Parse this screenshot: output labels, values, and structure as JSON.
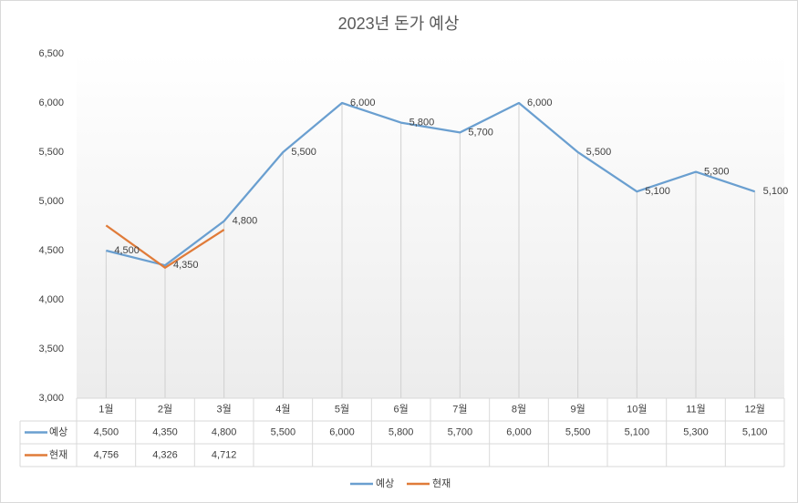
{
  "chart_data": {
    "type": "line",
    "title": "2023년 돈가 예상",
    "categories": [
      "1월",
      "2월",
      "3월",
      "4월",
      "5월",
      "6월",
      "7월",
      "8월",
      "9월",
      "10월",
      "11월",
      "12월"
    ],
    "series": [
      {
        "name": "예상",
        "color": "#6a9fd0",
        "values": [
          4500,
          4350,
          4800,
          5500,
          6000,
          5800,
          5700,
          6000,
          5500,
          5100,
          5300,
          5100
        ],
        "value_labels": [
          "4,500",
          "4,350",
          "4,800",
          "5,500",
          "6,000",
          "5,800",
          "5,700",
          "6,000",
          "5,500",
          "5,100",
          "5,300",
          "5,100"
        ]
      },
      {
        "name": "현재",
        "color": "#e07b39",
        "values": [
          4756,
          4326,
          4712,
          null,
          null,
          null,
          null,
          null,
          null,
          null,
          null,
          null
        ],
        "value_labels": [
          "4,756",
          "4,326",
          "4,712",
          null,
          null,
          null,
          null,
          null,
          null,
          null,
          null,
          null
        ]
      }
    ],
    "ylim": [
      3000,
      6500
    ],
    "yticks": [
      {
        "value": 3000,
        "label": "3,000"
      },
      {
        "value": 3500,
        "label": "3,500"
      },
      {
        "value": 4000,
        "label": "4,000"
      },
      {
        "value": 4500,
        "label": "4,500"
      },
      {
        "value": 5000,
        "label": "5,000"
      },
      {
        "value": 5500,
        "label": "5,500"
      },
      {
        "value": 6000,
        "label": "6,000"
      },
      {
        "value": 6500,
        "label": "6,500"
      }
    ],
    "data_labels_series": 0,
    "legend": "bottom"
  }
}
